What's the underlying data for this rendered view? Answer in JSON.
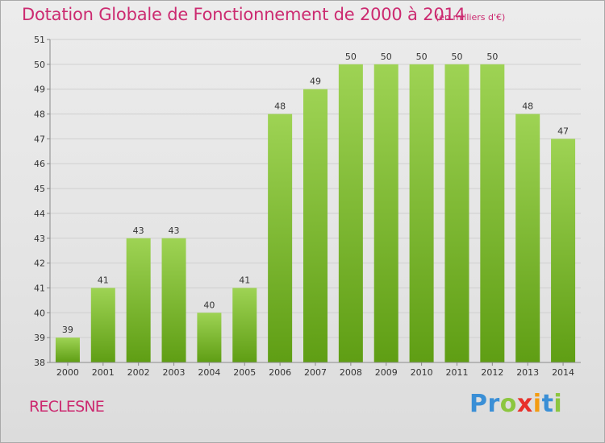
{
  "header": {
    "title": "Dotation Globale de Fonctionnement de 2000 à 2014",
    "subtitle": "(en milliers d'€)"
  },
  "footer": {
    "commune": "RECLESNE",
    "logo_letters": [
      "P",
      "r",
      "o",
      "x",
      "i",
      "t",
      "i"
    ],
    "logo_colors": [
      "#3a8fd6",
      "#3a8fd6",
      "#8cc63f",
      "#e8302a",
      "#f39c12",
      "#3a8fd6",
      "#8cc63f"
    ]
  },
  "colors": {
    "bar_top": "#9ed354",
    "bar_bottom": "#5f9e14",
    "text": "#333333",
    "grid": "#cfcfcf",
    "axis": "#8a8a8a"
  },
  "chart_data": {
    "type": "bar",
    "categories": [
      "2000",
      "2001",
      "2002",
      "2003",
      "2004",
      "2005",
      "2006",
      "2007",
      "2008",
      "2009",
      "2010",
      "2011",
      "2012",
      "2013",
      "2014"
    ],
    "values": [
      39,
      41,
      43,
      43,
      40,
      41,
      48,
      49,
      50,
      50,
      50,
      50,
      50,
      48,
      47
    ],
    "data_labels": [
      "39",
      "41",
      "43",
      "43",
      "40",
      "41",
      "48",
      "49",
      "50",
      "50",
      "50",
      "50",
      "50",
      "48",
      "47"
    ],
    "y_ticks": [
      38,
      39,
      40,
      41,
      42,
      43,
      44,
      45,
      46,
      47,
      48,
      49,
      50,
      51
    ],
    "ylim": [
      38,
      51
    ],
    "grid": true,
    "xlabel": "",
    "ylabel": ""
  }
}
